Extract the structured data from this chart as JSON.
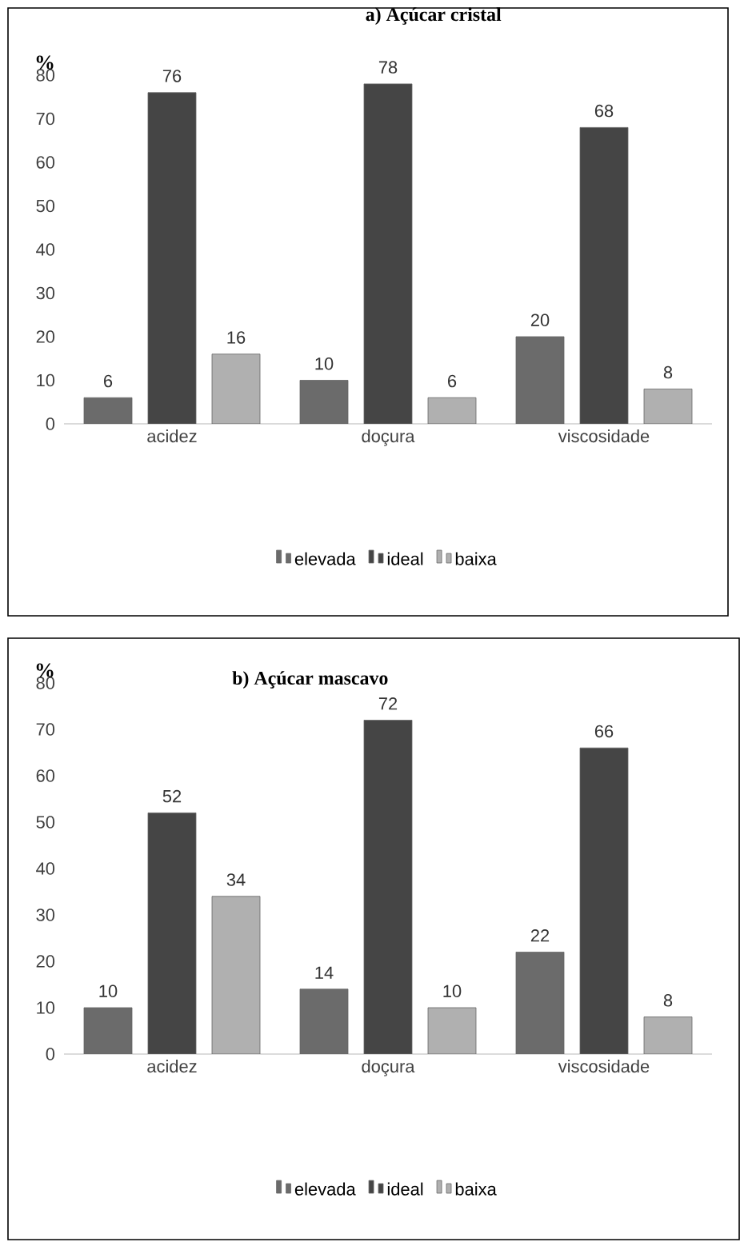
{
  "chart_data": [
    {
      "type": "bar",
      "title": "a)    Açúcar cristal",
      "ylabel": "%",
      "categories": [
        "acidez",
        "doçura",
        "viscosidade"
      ],
      "series": [
        {
          "name": "elevada",
          "color": "#6b6b6b",
          "values": [
            6,
            10,
            20
          ]
        },
        {
          "name": "ideal",
          "color": "#454545",
          "values": [
            76,
            78,
            68
          ]
        },
        {
          "name": "baixa",
          "color": "#b0b0b0",
          "values": [
            16,
            6,
            8
          ]
        }
      ],
      "ylim": [
        0,
        80
      ],
      "yticks": [
        0,
        10,
        20,
        30,
        40,
        50,
        60,
        70,
        80
      ],
      "data_labels": true,
      "legend": "bottom"
    },
    {
      "type": "bar",
      "title": "b) Açúcar mascavo",
      "ylabel": "%",
      "categories": [
        "acidez",
        "doçura",
        "viscosidade"
      ],
      "series": [
        {
          "name": "elevada",
          "color": "#6b6b6b",
          "values": [
            10,
            14,
            22
          ]
        },
        {
          "name": "ideal",
          "color": "#454545",
          "values": [
            52,
            72,
            66
          ]
        },
        {
          "name": "baixa",
          "color": "#b0b0b0",
          "values": [
            34,
            10,
            8
          ]
        }
      ],
      "ylim": [
        0,
        80
      ],
      "yticks": [
        0,
        10,
        20,
        30,
        40,
        50,
        60,
        70,
        80
      ],
      "data_labels": true,
      "legend": "bottom"
    }
  ]
}
